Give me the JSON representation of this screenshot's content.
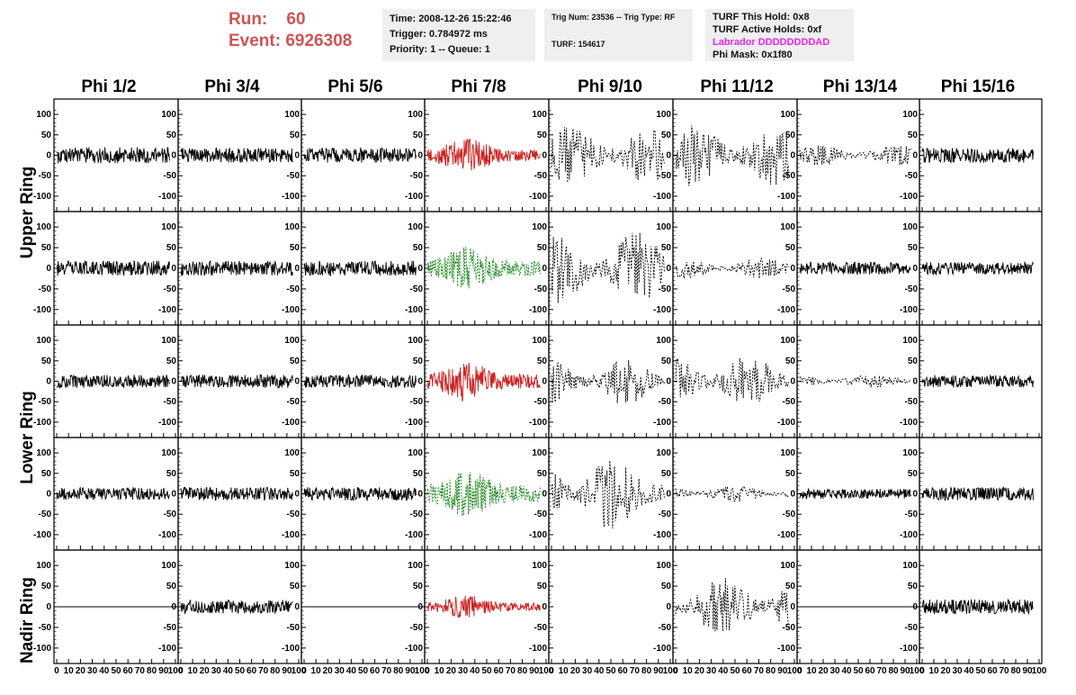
{
  "header": {
    "run_label": "Run:",
    "run_value": "60",
    "event_label": "Event:",
    "event_value": "6926308"
  },
  "info_box_1": {
    "time": "Time: 2008-12-26 15:22:46",
    "trigger": "Trigger: 0.784972 ms",
    "priority": "Priority: 1 -- Queue: 1"
  },
  "info_box_2": {
    "trig": "Trig Num: 23536 -- Trig Type: RF",
    "turf": "TURF: 154617"
  },
  "info_box_3": {
    "this_hold": "TURF This Hold: 0x8",
    "active_holds": "TURF Active Holds: 0xf",
    "labrador": "Labrador DDDDDDDDAD",
    "phi_mask": "Phi Mask: 0x1f80"
  },
  "chart_data": {
    "type": "line",
    "columns": [
      "Phi 1/2",
      "Phi 3/4",
      "Phi 5/6",
      "Phi 7/8",
      "Phi 9/10",
      "Phi 11/12",
      "Phi 13/14",
      "Phi 15/16"
    ],
    "rows": [
      "Upper Ring",
      "Upper Ring",
      "Lower Ring",
      "Lower Ring",
      "Nadir Ring"
    ],
    "row_labels": [
      "Upper Ring",
      "Lower Ring",
      "Nadir Ring"
    ],
    "ylim": [
      -120,
      120
    ],
    "yticks": [
      -100,
      -50,
      0,
      50,
      100
    ],
    "xlim": [
      0,
      100
    ],
    "xtick_labels": [
      "0",
      "10",
      "20",
      "30",
      "40",
      "50",
      "60",
      "70",
      "80",
      "90",
      "100"
    ],
    "colors": {
      "solid": "#000000",
      "red": "#cc2222",
      "green": "#228822",
      "dotted": "#000000"
    },
    "panels": [
      [
        "solid",
        "solid",
        "solid",
        "red",
        "dotted",
        "dotted",
        "dotted",
        "solid"
      ],
      [
        "solid",
        "solid",
        "solid",
        "green",
        "dotted",
        "dotted",
        "solid",
        "solid"
      ],
      [
        "solid",
        "solid",
        "solid",
        "red",
        "dotted",
        "dotted",
        "dotted",
        "solid"
      ],
      [
        "solid",
        "solid",
        "solid",
        "green",
        "dotted",
        "dotted",
        "solid",
        "solid"
      ],
      [
        "flat",
        "solid",
        "flat",
        "red",
        "empty",
        "dotted",
        "flat",
        "solid"
      ]
    ],
    "amplitudes": [
      [
        20,
        18,
        18,
        32,
        70,
        75,
        25,
        18
      ],
      [
        18,
        18,
        18,
        40,
        85,
        25,
        15,
        15
      ],
      [
        16,
        16,
        16,
        38,
        55,
        60,
        15,
        15
      ],
      [
        15,
        16,
        16,
        45,
        85,
        20,
        12,
        16
      ],
      [
        0,
        16,
        0,
        22,
        0,
        70,
        0,
        18
      ]
    ]
  }
}
